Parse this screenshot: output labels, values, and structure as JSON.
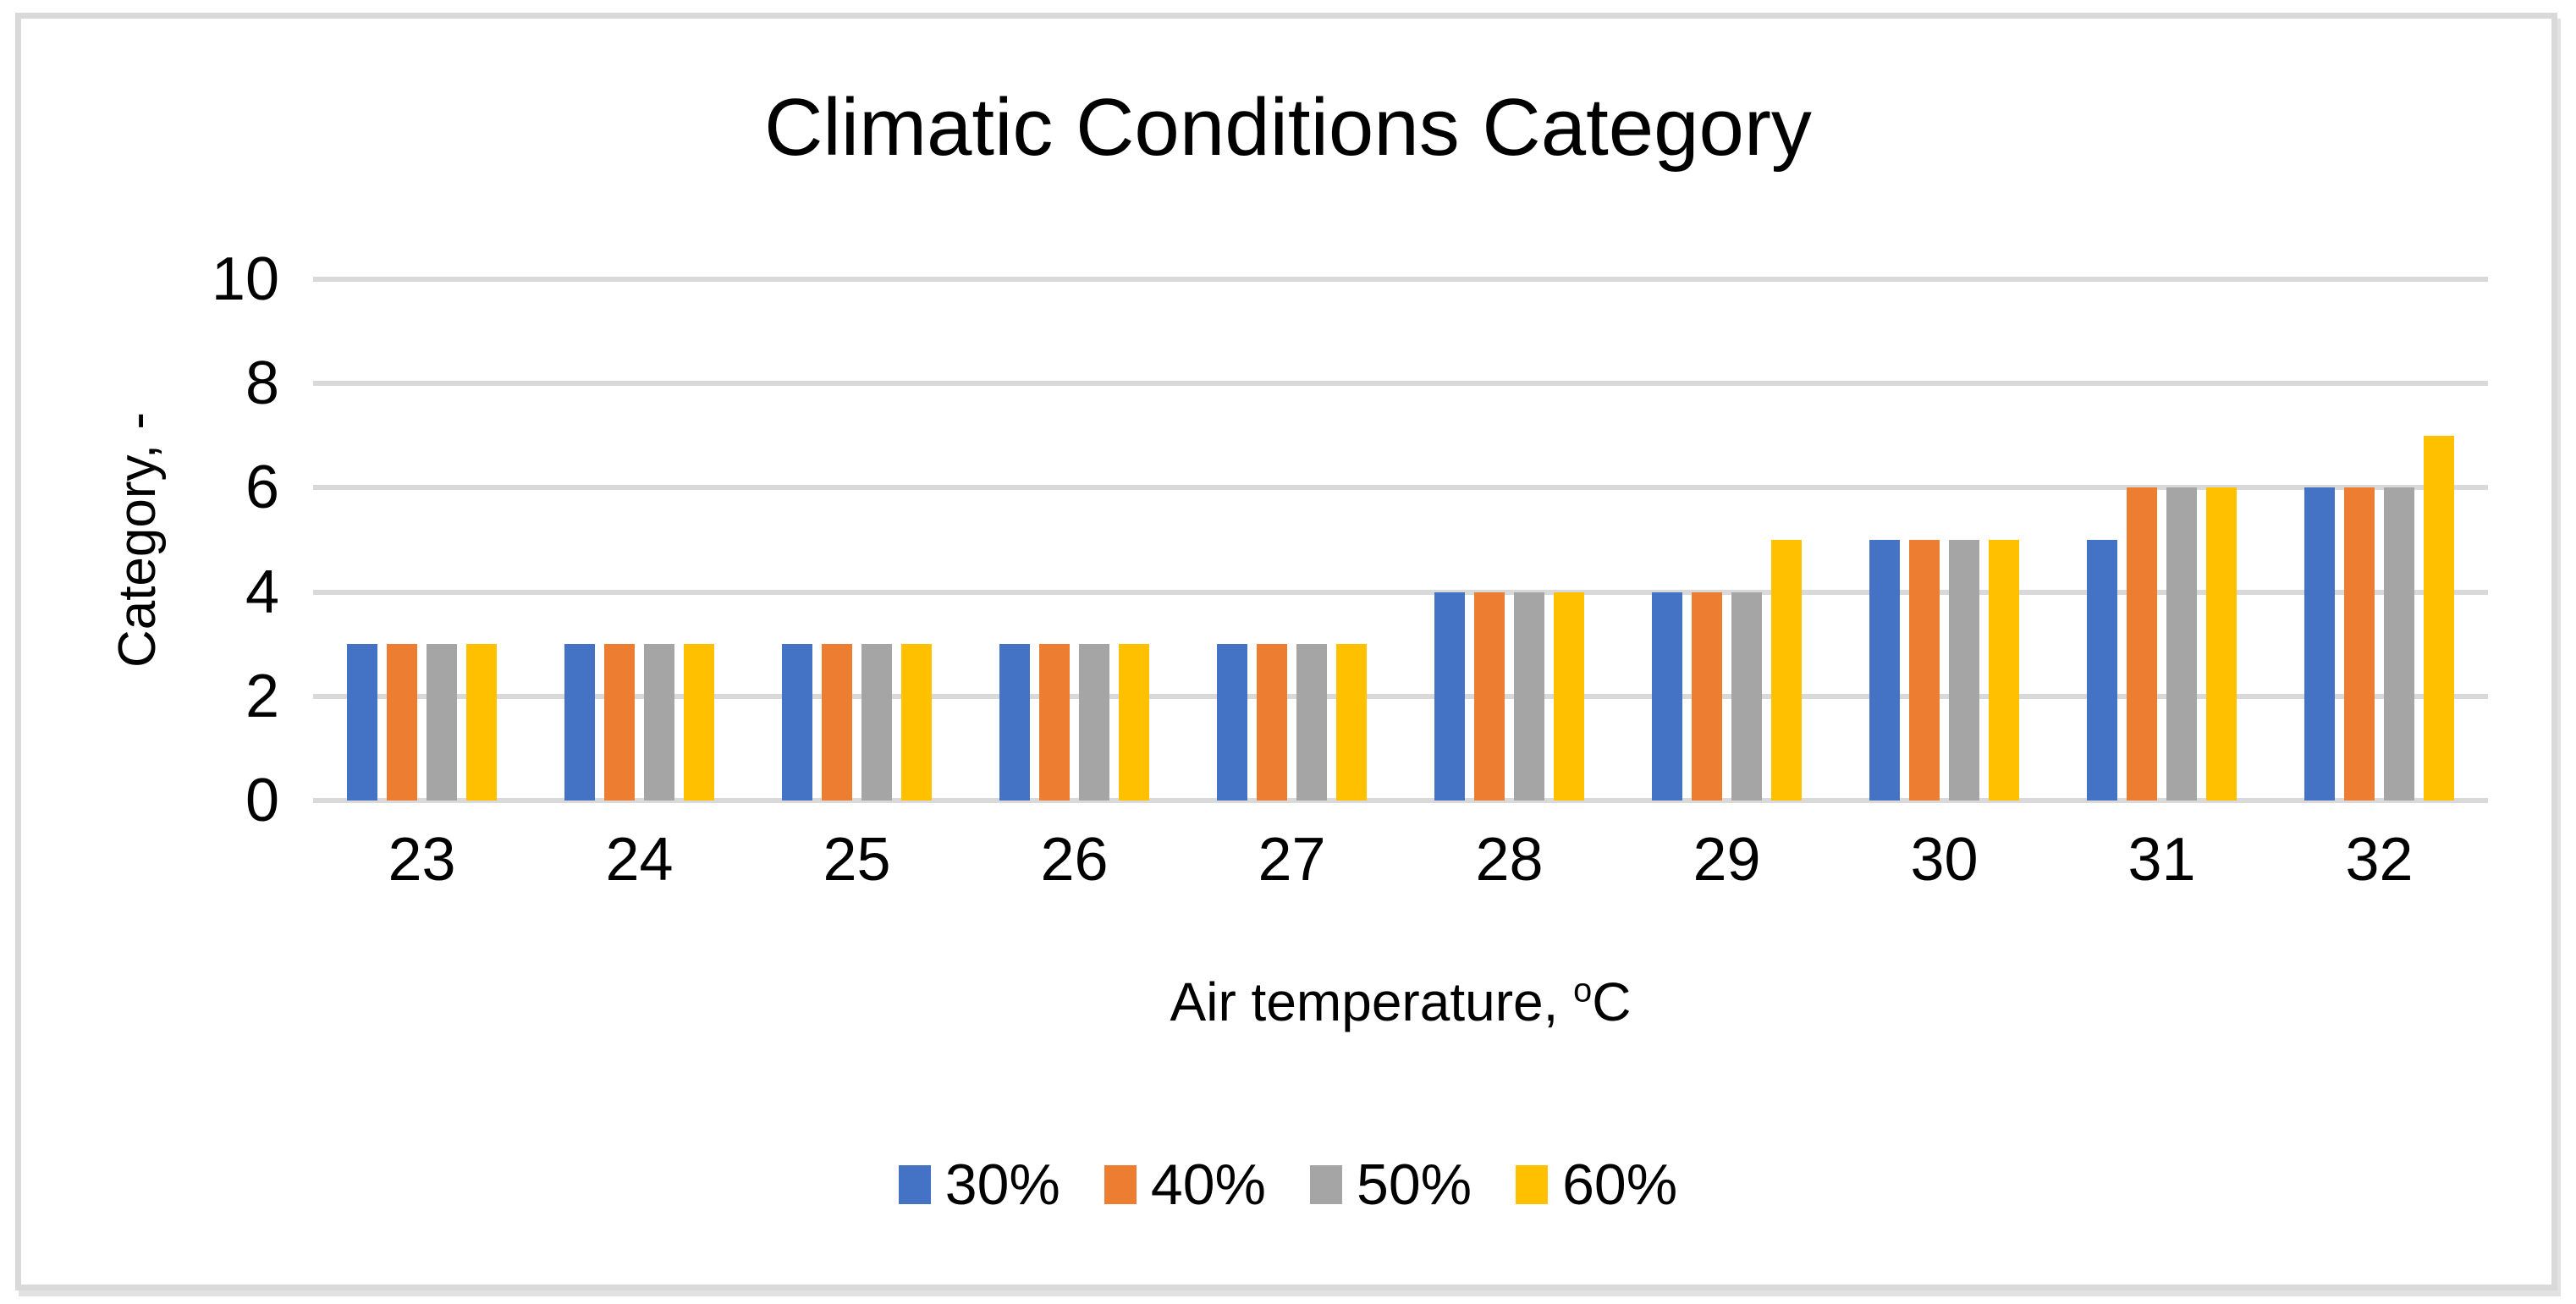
{
  "title": "Climatic Conditions Category",
  "y_axis": {
    "title": "Category, -"
  },
  "x_axis": {
    "title_main": "Air temperature, ",
    "title_sup": "o",
    "title_unit": "C"
  },
  "colors": {
    "series_blue": "#4472C4",
    "series_orange": "#ED7D31",
    "series_gray": "#A5A5A5",
    "series_yellow": "#FFC000",
    "gridline": "#D9D9D9",
    "frame_border": "#D9D9D9",
    "text": "#000000"
  },
  "chart_data": {
    "type": "bar",
    "title": "Climatic Conditions Category",
    "xlabel": "Air temperature, °C",
    "ylabel": "Category, -",
    "categories": [
      "23",
      "24",
      "25",
      "26",
      "27",
      "28",
      "29",
      "30",
      "31",
      "32"
    ],
    "series": [
      {
        "name": "30%",
        "color": "#4472C4",
        "values": [
          3,
          3,
          3,
          3,
          3,
          4,
          4,
          5,
          5,
          6
        ]
      },
      {
        "name": "40%",
        "color": "#ED7D31",
        "values": [
          3,
          3,
          3,
          3,
          3,
          4,
          4,
          5,
          6,
          6
        ]
      },
      {
        "name": "50%",
        "color": "#A5A5A5",
        "values": [
          3,
          3,
          3,
          3,
          3,
          4,
          4,
          5,
          6,
          6
        ]
      },
      {
        "name": "60%",
        "color": "#FFC000",
        "values": [
          3,
          3,
          3,
          3,
          3,
          4,
          5,
          5,
          6,
          7
        ]
      }
    ],
    "ylim": [
      0,
      10
    ],
    "y_ticks": [
      0,
      2,
      4,
      6,
      8,
      10
    ],
    "grid": "horizontal",
    "grid_color": "#D9D9D9",
    "legend_position": "bottom",
    "legend_entries": [
      "30%",
      "40%",
      "50%",
      "60%"
    ]
  }
}
